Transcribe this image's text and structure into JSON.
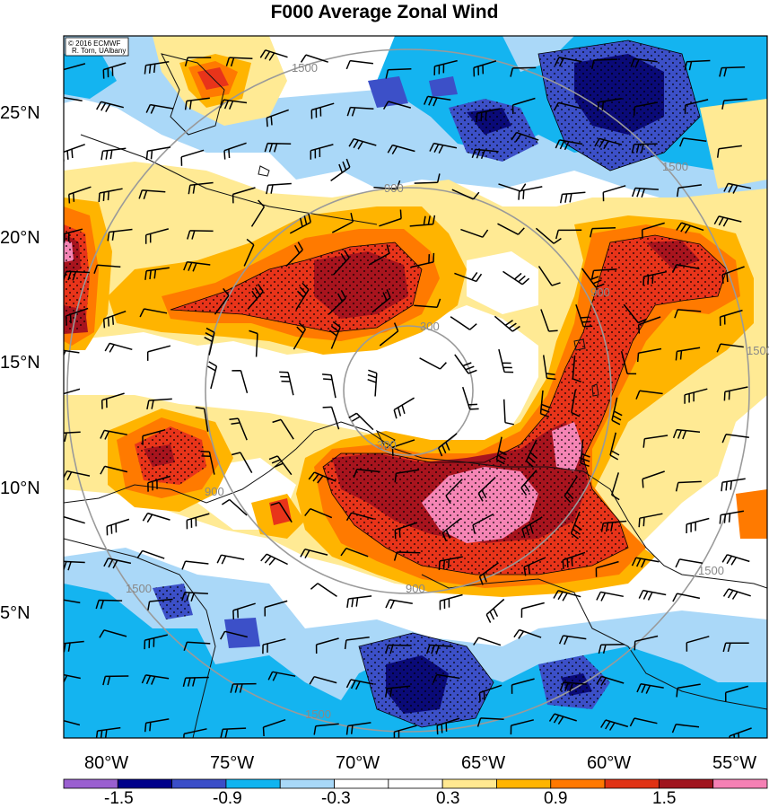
{
  "title": "F000 Average Zonal Wind",
  "credit": {
    "line1": "© 2016 ECMWF",
    "line2": "R. Torn, UAlbany"
  },
  "lat_labels": [
    "25°N",
    "20°N",
    "15°N",
    "10°N",
    "5°N"
  ],
  "lon_labels": [
    "80°W",
    "75°W",
    "70°W",
    "65°W",
    "60°W",
    "55°W"
  ],
  "ring_labels": [
    "300",
    "300",
    "900",
    "900",
    "900",
    "900",
    "1500",
    "1500",
    "1500",
    "1500",
    "1500",
    "1500"
  ],
  "colorbar": {
    "labels": [
      "-1.5",
      "-0.9",
      "-0.3",
      "0.3",
      "0.9",
      "1.5"
    ],
    "colors": [
      "#9a5fd0",
      "#00008a",
      "#3a4ec8",
      "#10b4f0",
      "#a8d8f8",
      "#ffffff",
      "#ffffff",
      "#ffe890",
      "#ffb400",
      "#ff7800",
      "#e03214",
      "#a0141e",
      "#f580b4"
    ]
  },
  "palette": {
    "dark_blue": "#0a0a78",
    "mid_blue": "#3c50c8",
    "cyan": "#14b4f0",
    "light_blue": "#aad8f8",
    "light_yellow": "#ffea94",
    "gold": "#ffb400",
    "orange": "#ff7a00",
    "red": "#e8341a",
    "dark_red": "#a8141e",
    "pink": "#f585b5",
    "ring": "#9a9a9a"
  }
}
